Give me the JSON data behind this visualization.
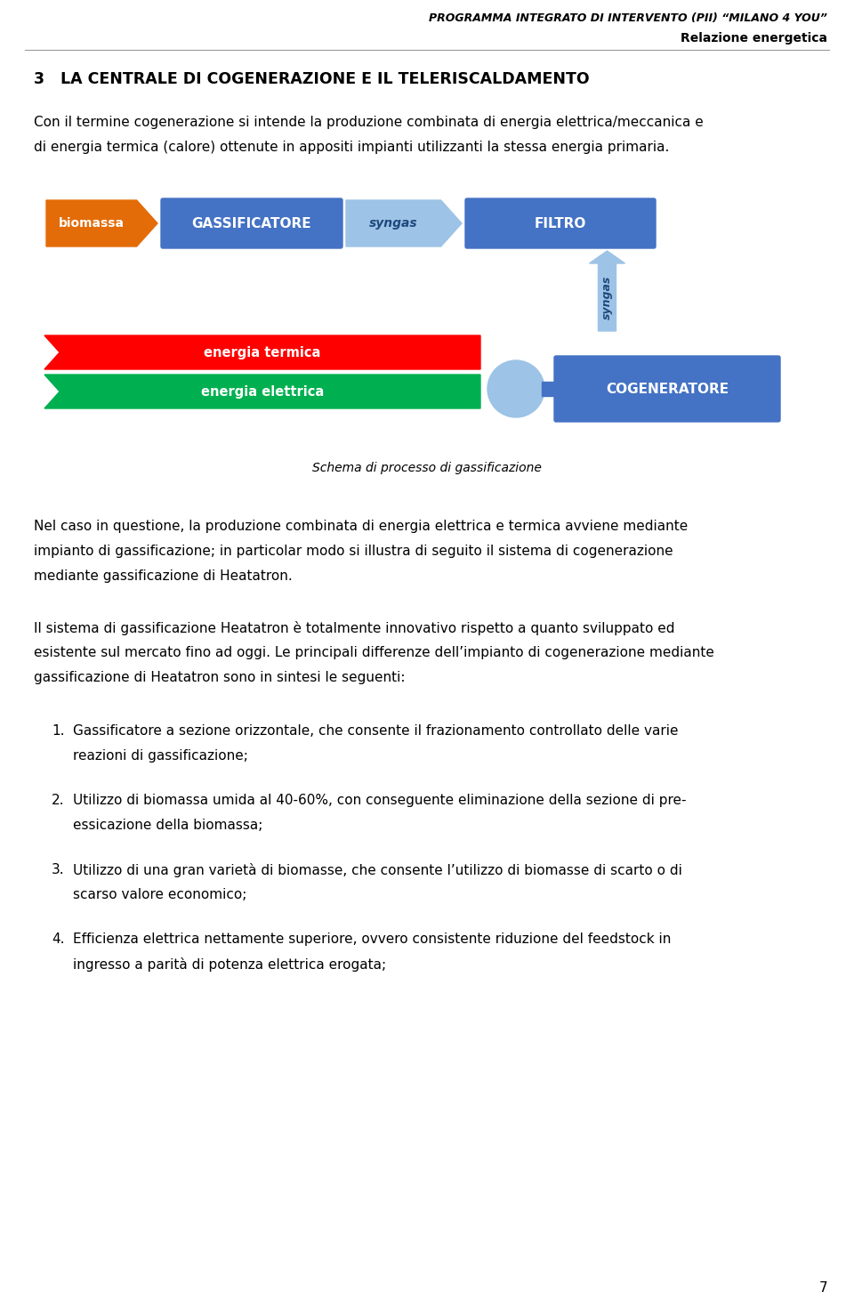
{
  "title_line1": "PROGRAMMA INTEGRATO DI INTERVENTO (PII) “MILANO 4 YOU”",
  "title_line2": "Relazione energetica",
  "section_title": "3   LA CENTRALE DI COGENERAZIONE E IL TELERISCALDAMENTO",
  "intro_line1": "Con il termine cogenerazione si intende la produzione combinata di energia elettrica/meccanica e",
  "intro_line2": "di energia termica (calore) ottenute in appositi impianti utilizzanti la stessa energia primaria.",
  "diagram_caption": "Schema di processo di gassificazione",
  "para1_line1": "Nel caso in questione, la produzione combinata di energia elettrica e termica avviene mediante",
  "para1_line2": "impianto di gassificazione; in particolar modo si illustra di seguito il sistema di cogenerazione",
  "para1_line3": "mediante gassificazione di Heatatron.",
  "para2_line1": "Il sistema di gassificazione Heatatron è totalmente innovativo rispetto a quanto sviluppato ed",
  "para2_line2": "esistente sul mercato fino ad oggi. Le principali differenze dell’impianto di cogenerazione mediante",
  "para2_line3": "gassificazione di Heatatron sono in sintesi le seguenti:",
  "list_items": [
    [
      "Gassificatore a sezione orizzontale, che consente il frazionamento controllato delle varie",
      "reazioni di gassificazione;"
    ],
    [
      "Utilizzo di biomassa umida al 40-60%, con conseguente eliminazione della sezione di pre-",
      "essicazione della biomassa;"
    ],
    [
      "Utilizzo di una gran varietà di biomasse, che consente l’utilizzo di biomasse di scarto o di",
      "scarso valore economico;"
    ],
    [
      "Efficienza elettrica nettamente superiore, ovvero consistente riduzione del feedstock in",
      "ingresso a parità di potenza elettrica erogata;"
    ]
  ],
  "page_number": "7",
  "bg_color": "#ffffff",
  "text_color": "#000000",
  "box_blue_dark": "#4472C4",
  "box_blue_light": "#9DC3E6",
  "arrow_orange": "#E36C09",
  "arrow_red": "#FF0000",
  "arrow_green": "#00B050",
  "syngas_text_color": "#1F497D"
}
